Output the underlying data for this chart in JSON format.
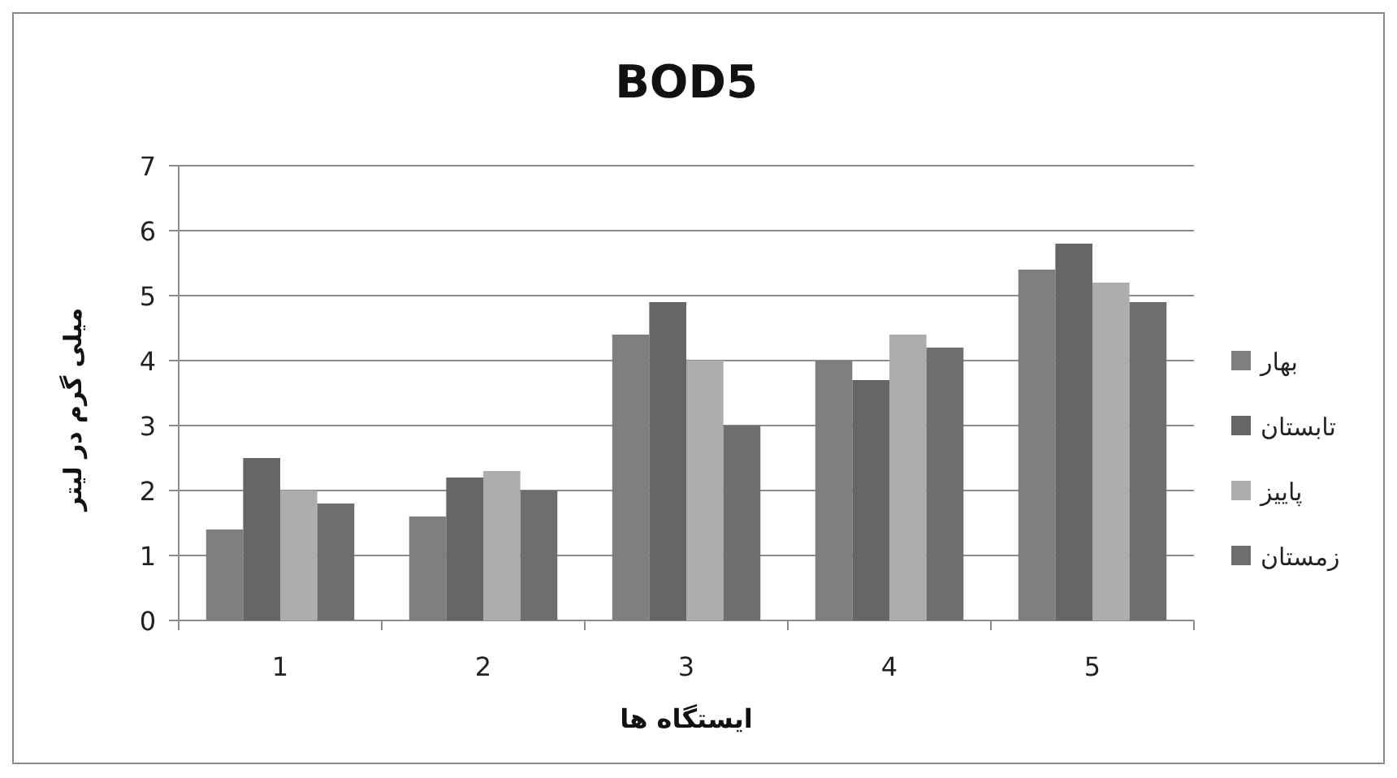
{
  "chart_data": {
    "type": "bar",
    "title": "BOD5",
    "xlabel": "ایستگاه ها",
    "ylabel": "میلی گرم در لیتر",
    "categories": [
      "1",
      "2",
      "3",
      "4",
      "5"
    ],
    "series": [
      {
        "name": "بهار",
        "color": "#7f7f7f",
        "values": [
          1.4,
          1.6,
          4.4,
          4.0,
          5.4
        ]
      },
      {
        "name": "تابستان",
        "color": "#666666",
        "values": [
          2.5,
          2.2,
          4.9,
          3.7,
          5.8
        ]
      },
      {
        "name": "پاییز",
        "color": "#adadad",
        "values": [
          2.0,
          2.3,
          4.0,
          4.4,
          5.2
        ]
      },
      {
        "name": "زمستان",
        "color": "#6e6e6e",
        "values": [
          1.8,
          2.0,
          3.0,
          4.2,
          4.9
        ]
      }
    ],
    "ylim": [
      0,
      7
    ],
    "yticks": [
      0,
      1,
      2,
      3,
      4,
      5,
      6,
      7
    ],
    "grid": "y",
    "legend": "right"
  }
}
